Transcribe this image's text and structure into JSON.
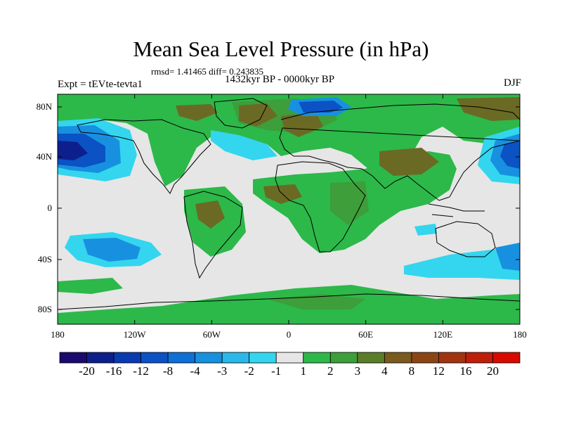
{
  "title": "Mean Sea Level Pressure (in hPa)",
  "stats": "rmsd= 1.41465 diff= 0.243835",
  "subtitle": "1432kyr BP - 0000kyr BP",
  "experiment": "Expt = tEVte-tevta1",
  "season": "DJF",
  "latitude_labels": [
    "80N",
    "40N",
    "0",
    "40S",
    "80S"
  ],
  "longitude_labels": [
    "180",
    "120W",
    "60W",
    "0",
    "60E",
    "120E",
    "180"
  ],
  "colorbar": {
    "labels": [
      "-20",
      "-16",
      "-12",
      "-8",
      "-4",
      "-3",
      "-2",
      "-1",
      "1",
      "2",
      "3",
      "4",
      "8",
      "12",
      "16",
      "20"
    ],
    "colors": [
      "#1a0a6e",
      "#0d1f8c",
      "#0a3ab0",
      "#0b52c4",
      "#0e6fd6",
      "#1890e0",
      "#2ab8ea",
      "#33d6ee",
      "#e6e6e6",
      "#2db84a",
      "#3d9e3a",
      "#5a7d2a",
      "#7a5a1e",
      "#8c4616",
      "#a33410",
      "#bf1e0a",
      "#d80a00"
    ]
  },
  "colors": {
    "land_outline": "#000000",
    "neutral": "#e6e6e6",
    "positive_low": "#2db84a",
    "positive_mid": "#3d9e3a",
    "positive_high": "#6a6a24",
    "negative_low": "#33d6ee",
    "negative_mid": "#1890e0",
    "negative_high": "#0b52c4",
    "negative_max": "#0d1f8c"
  }
}
